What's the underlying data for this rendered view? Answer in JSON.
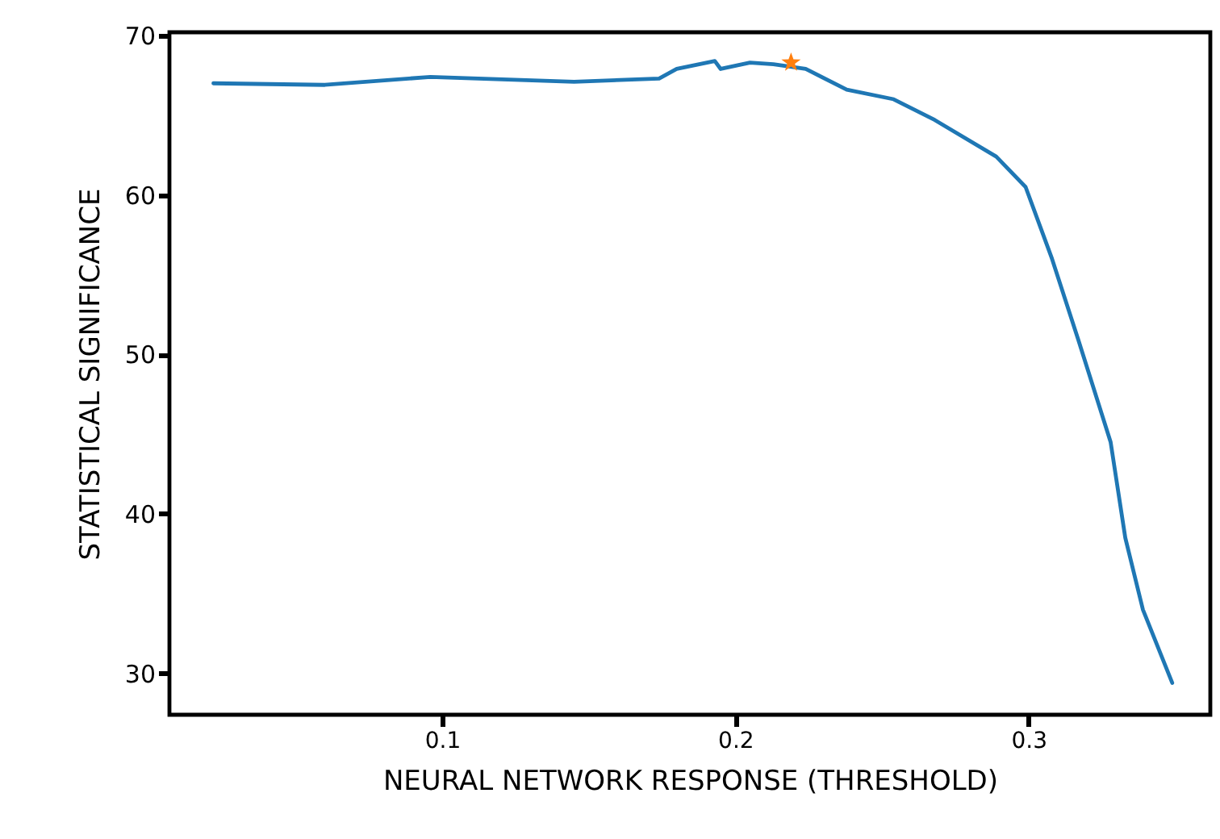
{
  "chart_data": {
    "type": "line",
    "xlabel": "NEURAL NETWORK RESPONSE (THRESHOLD)",
    "ylabel": "STATISTICAL SIGNIFICANCE",
    "xlim": [
      0.007,
      0.362
    ],
    "xticks": [
      0.1,
      0.2,
      0.3
    ],
    "ylim": [
      27.4,
      70.2
    ],
    "yticks": [
      30,
      40,
      50,
      60,
      70
    ],
    "grid": false,
    "series": [
      {
        "color": "#1f77b4",
        "x": [
          0.022,
          0.06,
          0.096,
          0.145,
          0.174,
          0.18,
          0.193,
          0.195,
          0.205,
          0.213,
          0.224,
          0.238,
          0.254,
          0.268,
          0.289,
          0.299,
          0.308,
          0.317,
          0.328,
          0.333,
          0.339,
          0.349
        ],
        "values": [
          67.0,
          66.9,
          67.4,
          67.1,
          67.3,
          67.9,
          68.4,
          67.9,
          68.3,
          68.2,
          67.9,
          66.6,
          66.0,
          64.7,
          62.4,
          60.5,
          56.0,
          50.9,
          44.5,
          38.5,
          34.0,
          29.4
        ]
      },
      {
        "type": "scatter",
        "marker": "star",
        "color": "#ff7f0e",
        "x": [
          0.219
        ],
        "values": [
          68.3
        ]
      }
    ]
  }
}
